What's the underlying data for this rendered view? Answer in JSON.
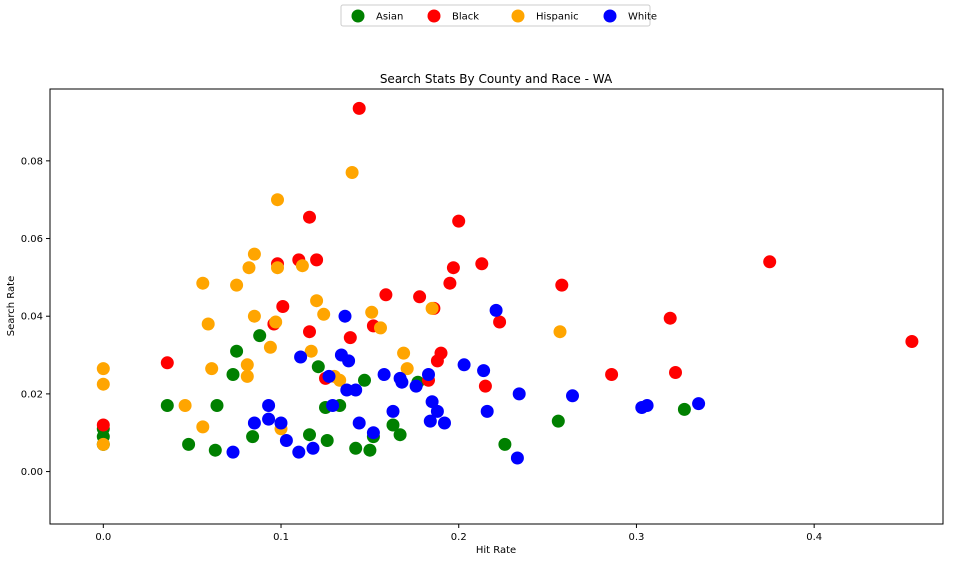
{
  "chart_data": {
    "type": "scatter",
    "title": "Search Stats By County and Race - WA",
    "xlabel": "Hit Rate",
    "ylabel": "Search Rate",
    "xlim": [
      -0.03,
      0.4725
    ],
    "ylim": [
      -0.0135,
      0.0985
    ],
    "xticks": [
      "0.0",
      "0.1",
      "0.2",
      "0.3",
      "0.4"
    ],
    "yticks": [
      "0.00",
      "0.02",
      "0.04",
      "0.06",
      "0.08"
    ],
    "grid": false,
    "legend_position": "top-center",
    "series": [
      {
        "name": "Asian",
        "color": "#008000",
        "points": [
          [
            0.0,
            0.011
          ],
          [
            0.0,
            0.009
          ],
          [
            0.0,
            0.007
          ],
          [
            0.036,
            0.017
          ],
          [
            0.048,
            0.007
          ],
          [
            0.063,
            0.0055
          ],
          [
            0.064,
            0.017
          ],
          [
            0.073,
            0.025
          ],
          [
            0.075,
            0.031
          ],
          [
            0.084,
            0.009
          ],
          [
            0.088,
            0.035
          ],
          [
            0.116,
            0.0095
          ],
          [
            0.121,
            0.027
          ],
          [
            0.125,
            0.0165
          ],
          [
            0.126,
            0.008
          ],
          [
            0.133,
            0.017
          ],
          [
            0.142,
            0.006
          ],
          [
            0.147,
            0.0235
          ],
          [
            0.15,
            0.0055
          ],
          [
            0.152,
            0.009
          ],
          [
            0.163,
            0.012
          ],
          [
            0.167,
            0.0095
          ],
          [
            0.177,
            0.023
          ],
          [
            0.226,
            0.007
          ],
          [
            0.256,
            0.013
          ],
          [
            0.327,
            0.016
          ]
        ]
      },
      {
        "name": "Black",
        "color": "#ff0000",
        "points": [
          [
            0.0,
            0.012
          ],
          [
            0.036,
            0.028
          ],
          [
            0.096,
            0.038
          ],
          [
            0.098,
            0.0535
          ],
          [
            0.101,
            0.0425
          ],
          [
            0.11,
            0.0545
          ],
          [
            0.116,
            0.036
          ],
          [
            0.116,
            0.0655
          ],
          [
            0.12,
            0.0545
          ],
          [
            0.125,
            0.024
          ],
          [
            0.139,
            0.0345
          ],
          [
            0.144,
            0.0935
          ],
          [
            0.152,
            0.0375
          ],
          [
            0.159,
            0.0455
          ],
          [
            0.178,
            0.045
          ],
          [
            0.183,
            0.0235
          ],
          [
            0.186,
            0.042
          ],
          [
            0.188,
            0.0285
          ],
          [
            0.19,
            0.0305
          ],
          [
            0.195,
            0.0485
          ],
          [
            0.197,
            0.0525
          ],
          [
            0.2,
            0.0645
          ],
          [
            0.213,
            0.0535
          ],
          [
            0.215,
            0.022
          ],
          [
            0.223,
            0.0385
          ],
          [
            0.258,
            0.048
          ],
          [
            0.286,
            0.025
          ],
          [
            0.319,
            0.0395
          ],
          [
            0.322,
            0.0255
          ],
          [
            0.375,
            0.054
          ],
          [
            0.455,
            0.0335
          ]
        ]
      },
      {
        "name": "Hispanic",
        "color": "#ffa500",
        "points": [
          [
            0.0,
            0.0265
          ],
          [
            0.0,
            0.0225
          ],
          [
            0.0,
            0.007
          ],
          [
            0.046,
            0.017
          ],
          [
            0.056,
            0.0485
          ],
          [
            0.056,
            0.0115
          ],
          [
            0.059,
            0.038
          ],
          [
            0.061,
            0.0265
          ],
          [
            0.075,
            0.048
          ],
          [
            0.081,
            0.0275
          ],
          [
            0.082,
            0.0525
          ],
          [
            0.081,
            0.0245
          ],
          [
            0.085,
            0.056
          ],
          [
            0.085,
            0.04
          ],
          [
            0.094,
            0.032
          ],
          [
            0.097,
            0.0385
          ],
          [
            0.098,
            0.07
          ],
          [
            0.098,
            0.0525
          ],
          [
            0.1,
            0.011
          ],
          [
            0.112,
            0.053
          ],
          [
            0.117,
            0.031
          ],
          [
            0.12,
            0.044
          ],
          [
            0.124,
            0.0405
          ],
          [
            0.13,
            0.0245
          ],
          [
            0.133,
            0.0235
          ],
          [
            0.14,
            0.077
          ],
          [
            0.151,
            0.041
          ],
          [
            0.156,
            0.037
          ],
          [
            0.169,
            0.0305
          ],
          [
            0.171,
            0.0265
          ],
          [
            0.185,
            0.042
          ],
          [
            0.257,
            0.036
          ]
        ]
      },
      {
        "name": "White",
        "color": "#0000ff",
        "points": [
          [
            0.073,
            0.005
          ],
          [
            0.085,
            0.0125
          ],
          [
            0.093,
            0.0135
          ],
          [
            0.093,
            0.017
          ],
          [
            0.1,
            0.0125
          ],
          [
            0.103,
            0.008
          ],
          [
            0.11,
            0.005
          ],
          [
            0.111,
            0.0295
          ],
          [
            0.118,
            0.006
          ],
          [
            0.127,
            0.0245
          ],
          [
            0.129,
            0.017
          ],
          [
            0.134,
            0.03
          ],
          [
            0.136,
            0.04
          ],
          [
            0.137,
            0.021
          ],
          [
            0.138,
            0.0285
          ],
          [
            0.142,
            0.021
          ],
          [
            0.144,
            0.0125
          ],
          [
            0.152,
            0.01
          ],
          [
            0.158,
            0.025
          ],
          [
            0.163,
            0.0155
          ],
          [
            0.167,
            0.024
          ],
          [
            0.168,
            0.023
          ],
          [
            0.176,
            0.022
          ],
          [
            0.183,
            0.025
          ],
          [
            0.184,
            0.013
          ],
          [
            0.185,
            0.018
          ],
          [
            0.188,
            0.0155
          ],
          [
            0.192,
            0.0125
          ],
          [
            0.203,
            0.0275
          ],
          [
            0.214,
            0.026
          ],
          [
            0.216,
            0.0155
          ],
          [
            0.221,
            0.0415
          ],
          [
            0.233,
            0.0035
          ],
          [
            0.234,
            0.02
          ],
          [
            0.264,
            0.0195
          ],
          [
            0.303,
            0.0165
          ],
          [
            0.306,
            0.017
          ],
          [
            0.335,
            0.0175
          ]
        ]
      }
    ]
  }
}
